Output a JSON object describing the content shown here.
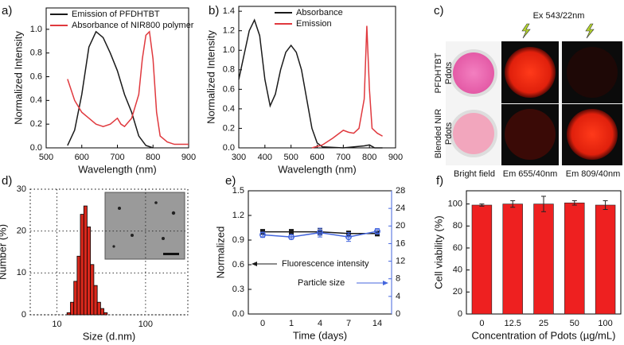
{
  "chart_data": [
    {
      "panel": "a)",
      "type": "line",
      "xlabel": "Wavelength (nm)",
      "ylabel": "Normalized Intensity",
      "xlim": [
        500,
        900
      ],
      "xticks": [
        500,
        600,
        700,
        800,
        900
      ],
      "ylim": [
        0,
        1.18
      ],
      "yticks": [
        {
          "value": 0,
          "label": "0.0"
        },
        0.2,
        0.4,
        0.6,
        0.8,
        {
          "value": 1,
          "label": "1.0"
        }
      ],
      "legend": "upper left",
      "series": [
        {
          "name": "Emission of PFDHTBT",
          "color": "#1a1a1a",
          "x": [
            560,
            580,
            600,
            620,
            640,
            660,
            680,
            700,
            720,
            740,
            760,
            780,
            800
          ],
          "values": [
            0.02,
            0.15,
            0.45,
            0.85,
            0.98,
            0.93,
            0.8,
            0.65,
            0.45,
            0.3,
            0.1,
            0.02,
            0.0
          ]
        },
        {
          "name": "Absorbance of NIR800 polymer",
          "color": "#e0393e",
          "x": [
            560,
            580,
            600,
            620,
            640,
            660,
            680,
            700,
            710,
            720,
            740,
            760,
            770,
            780,
            790,
            800,
            810,
            820,
            840,
            860,
            880,
            900
          ],
          "values": [
            0.58,
            0.4,
            0.3,
            0.25,
            0.2,
            0.18,
            0.2,
            0.25,
            0.2,
            0.18,
            0.25,
            0.45,
            0.75,
            0.95,
            0.98,
            0.75,
            0.3,
            0.1,
            0.05,
            0.03,
            0.03,
            0.03
          ]
        }
      ]
    },
    {
      "panel": "b)",
      "type": "line",
      "xlabel": "Wavelength (nm)",
      "ylabel": "Normalized Intensity",
      "xlim": [
        300,
        900
      ],
      "xticks": [
        300,
        400,
        500,
        600,
        700,
        800,
        900
      ],
      "ylim": [
        0,
        1.45
      ],
      "yticks": [
        {
          "value": 0,
          "label": "0.0"
        },
        0.2,
        0.4,
        0.6,
        0.8,
        {
          "value": 1,
          "label": "1.0"
        },
        1.2,
        1.4
      ],
      "legend": "upper right",
      "series": [
        {
          "name": "Absorbance",
          "color": "#1a1a1a",
          "x": [
            300,
            320,
            340,
            360,
            380,
            400,
            420,
            440,
            460,
            480,
            500,
            520,
            540,
            560,
            580,
            600,
            620,
            700,
            780,
            800,
            820,
            850
          ],
          "values": [
            0.7,
            0.95,
            1.2,
            1.31,
            1.15,
            0.7,
            0.43,
            0.55,
            0.8,
            0.98,
            1.05,
            0.98,
            0.8,
            0.5,
            0.2,
            0.05,
            0.01,
            0.0,
            0.02,
            0.03,
            0.0,
            0.0
          ]
        },
        {
          "name": "Emission",
          "color": "#e0393e",
          "x": [
            580,
            620,
            660,
            700,
            720,
            740,
            760,
            780,
            790,
            800,
            810,
            830,
            850
          ],
          "values": [
            0.0,
            0.03,
            0.1,
            0.18,
            0.16,
            0.15,
            0.2,
            0.5,
            1.25,
            0.6,
            0.2,
            0.15,
            0.12
          ]
        }
      ]
    },
    {
      "panel": "d)",
      "type": "histogram",
      "xlabel": "Size (d.nm)",
      "ylabel": "Number (%)",
      "xscale": "log",
      "xlim": [
        5,
        300
      ],
      "xticks": [
        10,
        100
      ],
      "ylim": [
        0,
        30
      ],
      "yticks": [
        0,
        10,
        20,
        30
      ],
      "grid": true,
      "color": "#d9281c",
      "bins": [
        13,
        14.2,
        15.5,
        16.9,
        18.4,
        20.1,
        21.9,
        23.9,
        26.1,
        28.5,
        31.1,
        33.9,
        37
      ],
      "counts": [
        0.5,
        3,
        8,
        14,
        24,
        26,
        21,
        12,
        7,
        3,
        1.5,
        0.5
      ]
    },
    {
      "panel": "e)",
      "type": "line",
      "xlabel": "Time (days)",
      "ylabel": "Normalized",
      "categories": [
        "0",
        "1",
        "4",
        "7",
        "14"
      ],
      "ylim": [
        0,
        1.5
      ],
      "yticks": [
        {
          "value": 0,
          "label": "0.0"
        },
        0.3,
        0.6,
        0.9,
        1.2,
        1.5
      ],
      "y2lim": [
        0,
        28
      ],
      "y2ticks": [
        0,
        4,
        8,
        12,
        16,
        20,
        24,
        28
      ],
      "legend": "arrows",
      "series": [
        {
          "name": "Fluorescence intensity",
          "color": "#1a1a1a",
          "marker": "square",
          "values": [
            1.0,
            1.0,
            1.0,
            0.98,
            0.98
          ],
          "errors": [
            0.03,
            0.03,
            0.04,
            0.03,
            0.03
          ]
        },
        {
          "name": "Particle size",
          "color": "#4466dd",
          "marker": "circle",
          "axis": "y2",
          "values": [
            18,
            17.5,
            18.5,
            17.5,
            18.8
          ],
          "errors": [
            0.6,
            0.5,
            1,
            1,
            0.6
          ]
        }
      ]
    },
    {
      "panel": "f)",
      "type": "bar",
      "xlabel": "Concentration of Pdots (µg/mL)",
      "ylabel": "Cell viability (%)",
      "categories": [
        "0",
        "12.5",
        "25",
        "50",
        "100"
      ],
      "values": [
        99,
        100,
        100,
        101,
        99
      ],
      "errors": [
        1,
        3,
        7,
        2,
        4
      ],
      "color": "#ee2020",
      "ylim": [
        0,
        112
      ],
      "yticks": [
        0,
        20,
        40,
        60,
        80,
        100
      ]
    }
  ],
  "panel_c": {
    "label": "c)",
    "excitation": "Ex 543/22nm",
    "rows": [
      [
        "PFDHTBT",
        "Pdots"
      ],
      [
        "Blended NIR",
        "Pdots"
      ]
    ],
    "columns": [
      "Bright field",
      "Em 655/40nm",
      "Em 809/40nm"
    ]
  }
}
